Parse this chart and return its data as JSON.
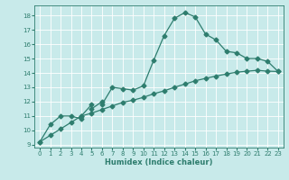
{
  "xlabel": "Humidex (Indice chaleur)",
  "background_color": "#c8eaea",
  "grid_color": "#ffffff",
  "line_color": "#2e7d6e",
  "xlim": [
    -0.5,
    23.5
  ],
  "ylim": [
    8.8,
    18.7
  ],
  "xticks": [
    0,
    1,
    2,
    3,
    4,
    5,
    6,
    7,
    8,
    9,
    10,
    11,
    12,
    13,
    14,
    15,
    16,
    17,
    18,
    19,
    20,
    21,
    22,
    23
  ],
  "yticks": [
    9,
    10,
    11,
    12,
    13,
    14,
    15,
    16,
    17,
    18
  ],
  "curve1_x": [
    0,
    1,
    2,
    3,
    4,
    4,
    5,
    5,
    6,
    6,
    7,
    8,
    9,
    10,
    11,
    12,
    13,
    14,
    15,
    16,
    17,
    18,
    19,
    20,
    21,
    22,
    23
  ],
  "curve1_y": [
    9.2,
    10.4,
    11.0,
    11.0,
    10.8,
    11.0,
    11.8,
    11.5,
    12.0,
    11.8,
    13.0,
    12.9,
    12.8,
    13.1,
    14.9,
    16.6,
    17.8,
    18.2,
    17.9,
    16.7,
    16.3,
    15.5,
    15.4,
    15.0,
    15.0,
    14.8,
    14.1
  ],
  "curve2_x": [
    0,
    1,
    2,
    3,
    4,
    5,
    6,
    7,
    8,
    9,
    10,
    11,
    12,
    13,
    14,
    15,
    16,
    17,
    18,
    19,
    20,
    21,
    22,
    23
  ],
  "curve2_y": [
    9.2,
    9.65,
    10.1,
    10.55,
    11.0,
    11.2,
    11.45,
    11.7,
    11.95,
    12.1,
    12.3,
    12.55,
    12.75,
    13.0,
    13.22,
    13.45,
    13.62,
    13.78,
    13.92,
    14.05,
    14.12,
    14.18,
    14.12,
    14.1
  ],
  "marker_size": 2.5,
  "linewidth": 0.9,
  "xlabel_fontsize": 6,
  "tick_fontsize": 5
}
